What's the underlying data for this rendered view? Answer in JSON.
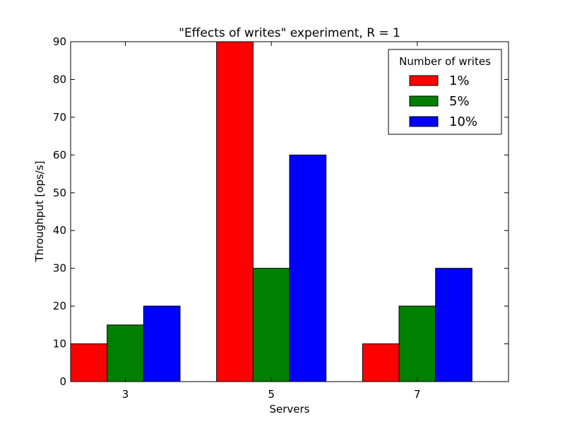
{
  "chart_data": {
    "type": "bar",
    "title": "\"Effects of writes\" experiment, R = 1",
    "xlabel": "Servers",
    "ylabel": "Throughput [ops/s]",
    "categories": [
      "3",
      "5",
      "7"
    ],
    "ylim": [
      0,
      90
    ],
    "yticks": [
      "0",
      "10",
      "20",
      "30",
      "40",
      "50",
      "60",
      "70",
      "80",
      "90"
    ],
    "grid": false,
    "legend": {
      "title": "Number of writes",
      "placement": "top-right"
    },
    "series": [
      {
        "name": "1%",
        "color": "#ff0000",
        "values": [
          10,
          90,
          10
        ]
      },
      {
        "name": "5%",
        "color": "#008000",
        "values": [
          15,
          30,
          20
        ]
      },
      {
        "name": "10%",
        "color": "#0000ff",
        "values": [
          20,
          60,
          30
        ]
      }
    ]
  }
}
